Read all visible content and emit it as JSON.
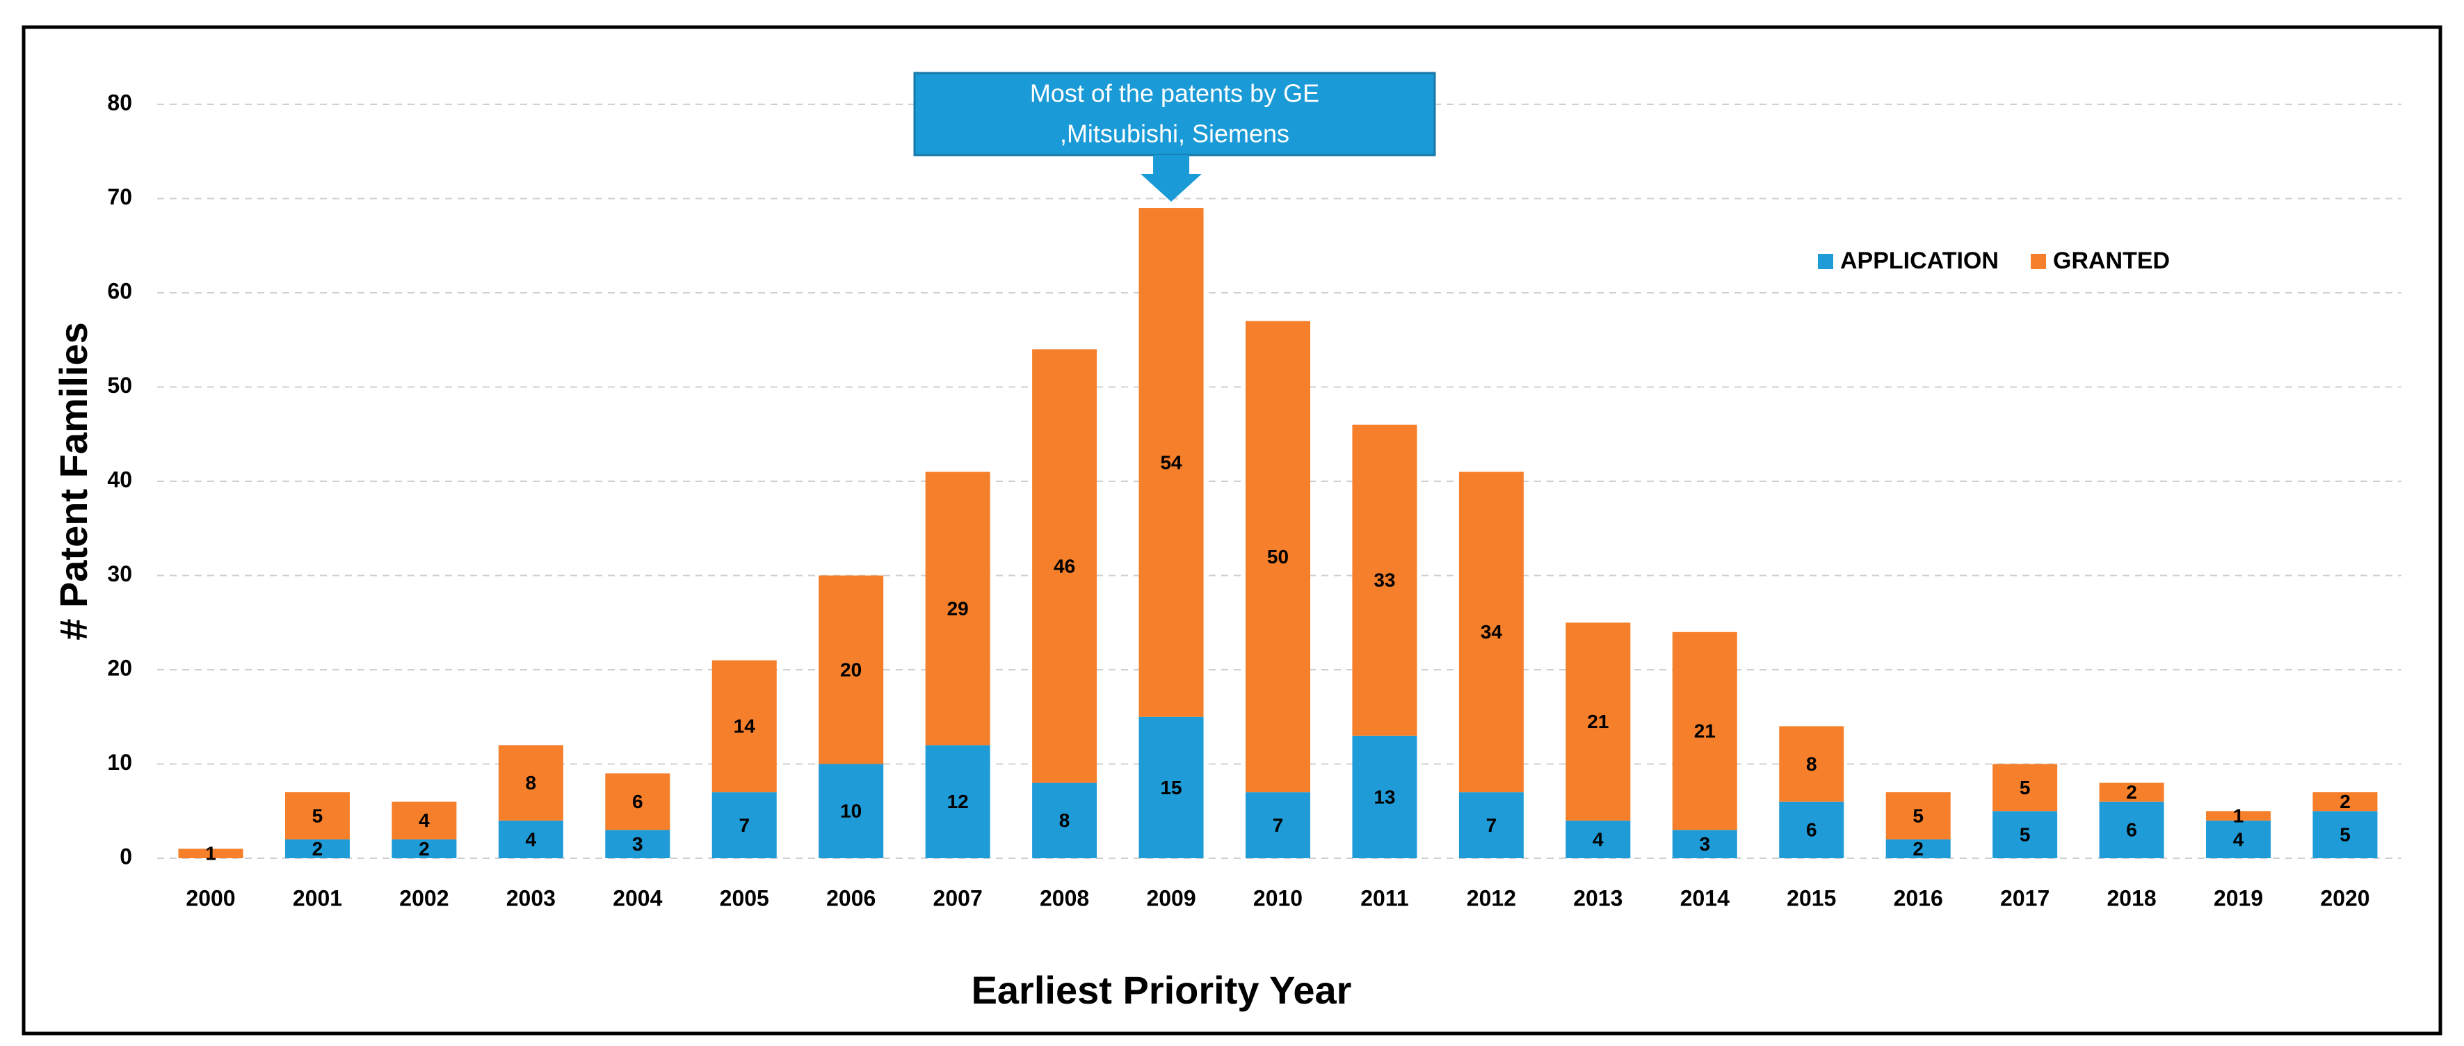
{
  "chart_data": {
    "type": "stacked_bar",
    "x_label": "Earliest Priority Year",
    "y_label": "# Patent Families",
    "annotation": [
      "Most of the patents by GE",
      ",Mitsubishi, Siemens"
    ],
    "categories": [
      "2000",
      "2001",
      "2002",
      "2003",
      "2004",
      "2005",
      "2006",
      "2007",
      "2008",
      "2009",
      "2010",
      "2011",
      "2012",
      "2013",
      "2014",
      "2015",
      "2016",
      "2017",
      "2018",
      "2019",
      "2020"
    ],
    "series": [
      {
        "name": "APPLICATION",
        "color": "#1f9bd7",
        "values": [
          0,
          2,
          2,
          4,
          3,
          7,
          10,
          12,
          8,
          15,
          7,
          13,
          7,
          4,
          3,
          6,
          2,
          5,
          6,
          4,
          5
        ]
      },
      {
        "name": "GRANTED",
        "color": "#f57f2a",
        "values": [
          1,
          5,
          4,
          8,
          6,
          14,
          20,
          29,
          46,
          54,
          50,
          33,
          34,
          21,
          21,
          8,
          5,
          5,
          2,
          1,
          2
        ]
      }
    ],
    "ylim": [
      0,
      80
    ],
    "yticks": [
      0,
      10,
      20,
      30,
      40,
      50,
      60,
      70,
      80
    ],
    "grid": true,
    "legend": "upper-right"
  }
}
